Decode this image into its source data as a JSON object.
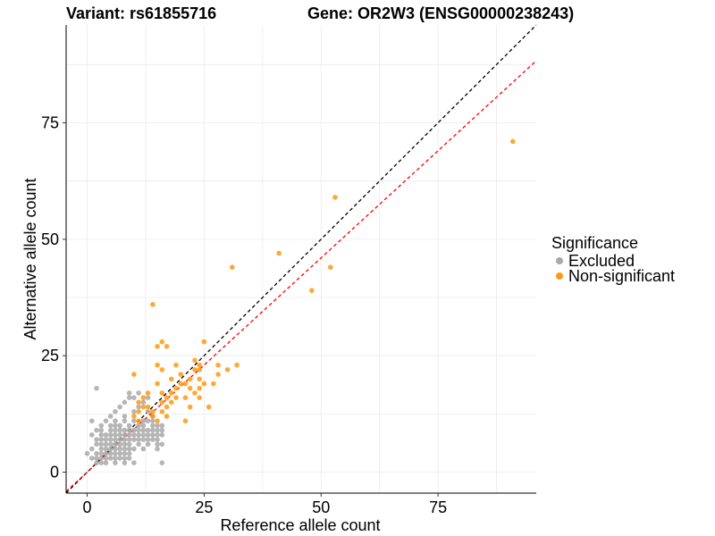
{
  "chart_data": {
    "type": "scatter",
    "title_left": "Variant: rs61855716",
    "title_right": "Gene: OR2W3 (ENSG00000238243)",
    "xlabel": "Reference allele count",
    "ylabel": "Alternative allele count",
    "xlim": [
      -4.5,
      96
    ],
    "ylim": [
      -4.5,
      96
    ],
    "xticks": [
      0,
      25,
      50,
      75
    ],
    "yticks": [
      0,
      25,
      50,
      75
    ],
    "grid": true,
    "reference_lines": [
      {
        "slope": 1.0,
        "intercept": 0,
        "color": "#000000",
        "style": "dashed"
      },
      {
        "slope": 0.92,
        "intercept": 0,
        "color": "#ff0000",
        "style": "dashed"
      }
    ],
    "legend": {
      "title": "Significance",
      "placement": "right",
      "entries": [
        {
          "label": "Excluded",
          "color": "#a9a9a9"
        },
        {
          "label": "Non-significant",
          "color": "#ff9a0f"
        }
      ]
    },
    "series": [
      {
        "name": "Excluded",
        "color": "#a9a9a9",
        "points": [
          [
            0,
            4
          ],
          [
            1,
            3
          ],
          [
            1,
            5
          ],
          [
            1,
            8
          ],
          [
            1,
            11
          ],
          [
            2,
            2
          ],
          [
            2,
            3
          ],
          [
            2,
            4
          ],
          [
            2,
            6
          ],
          [
            2,
            7
          ],
          [
            2,
            9
          ],
          [
            2,
            18
          ],
          [
            3,
            2
          ],
          [
            3,
            3
          ],
          [
            3,
            4
          ],
          [
            3,
            5
          ],
          [
            3,
            6
          ],
          [
            3,
            7
          ],
          [
            3,
            8
          ],
          [
            3,
            9
          ],
          [
            3,
            10
          ],
          [
            4,
            2
          ],
          [
            4,
            3
          ],
          [
            4,
            4
          ],
          [
            4,
            5
          ],
          [
            4,
            6
          ],
          [
            4,
            7
          ],
          [
            4,
            8
          ],
          [
            4,
            11
          ],
          [
            5,
            3
          ],
          [
            5,
            4
          ],
          [
            5,
            5
          ],
          [
            5,
            6
          ],
          [
            5,
            7
          ],
          [
            5,
            8
          ],
          [
            5,
            9
          ],
          [
            5,
            10
          ],
          [
            5,
            12
          ],
          [
            6,
            2
          ],
          [
            6,
            3
          ],
          [
            6,
            4
          ],
          [
            6,
            5
          ],
          [
            6,
            6
          ],
          [
            6,
            7
          ],
          [
            6,
            8
          ],
          [
            6,
            9
          ],
          [
            6,
            10
          ],
          [
            6,
            11
          ],
          [
            6,
            13
          ],
          [
            7,
            3
          ],
          [
            7,
            4
          ],
          [
            7,
            5
          ],
          [
            7,
            6
          ],
          [
            7,
            7
          ],
          [
            7,
            8
          ],
          [
            7,
            9
          ],
          [
            7,
            10
          ],
          [
            7,
            14
          ],
          [
            8,
            2
          ],
          [
            8,
            3
          ],
          [
            8,
            4
          ],
          [
            8,
            5
          ],
          [
            8,
            6
          ],
          [
            8,
            7
          ],
          [
            8,
            8
          ],
          [
            8,
            9
          ],
          [
            8,
            11
          ],
          [
            8,
            12
          ],
          [
            8,
            15
          ],
          [
            9,
            3
          ],
          [
            9,
            4
          ],
          [
            9,
            5
          ],
          [
            9,
            6
          ],
          [
            9,
            7
          ],
          [
            9,
            8
          ],
          [
            9,
            9
          ],
          [
            9,
            10
          ],
          [
            9,
            16
          ],
          [
            9,
            17
          ],
          [
            10,
            2
          ],
          [
            10,
            5
          ],
          [
            10,
            7
          ],
          [
            10,
            8
          ],
          [
            10,
            9
          ],
          [
            10,
            11
          ],
          [
            10,
            13
          ],
          [
            10,
            16
          ],
          [
            11,
            6
          ],
          [
            11,
            7
          ],
          [
            11,
            8
          ],
          [
            11,
            9
          ],
          [
            11,
            10
          ],
          [
            11,
            14
          ],
          [
            11,
            17
          ],
          [
            12,
            5
          ],
          [
            12,
            7
          ],
          [
            12,
            8
          ],
          [
            12,
            9
          ],
          [
            12,
            10
          ],
          [
            12,
            11
          ],
          [
            12,
            15
          ],
          [
            13,
            6
          ],
          [
            13,
            7
          ],
          [
            13,
            8
          ],
          [
            13,
            9
          ],
          [
            13,
            11
          ],
          [
            13,
            13
          ],
          [
            13,
            16
          ],
          [
            14,
            7
          ],
          [
            14,
            8
          ],
          [
            14,
            9
          ],
          [
            14,
            10
          ],
          [
            14,
            11
          ],
          [
            14,
            12
          ],
          [
            15,
            5
          ],
          [
            15,
            6
          ],
          [
            15,
            7
          ],
          [
            15,
            8
          ],
          [
            15,
            9
          ],
          [
            15,
            10
          ],
          [
            16,
            2
          ],
          [
            16,
            6
          ],
          [
            16,
            8
          ],
          [
            16,
            9
          ],
          [
            16,
            10
          ]
        ]
      },
      {
        "name": "Non-significant",
        "color": "#ff9a0f",
        "points": [
          [
            10,
            12
          ],
          [
            10,
            21
          ],
          [
            11,
            11
          ],
          [
            11,
            13
          ],
          [
            11,
            15
          ],
          [
            12,
            14
          ],
          [
            12,
            16
          ],
          [
            13,
            17
          ],
          [
            13,
            14
          ],
          [
            14,
            12
          ],
          [
            14,
            36
          ],
          [
            14,
            13
          ],
          [
            15,
            11
          ],
          [
            15,
            19
          ],
          [
            15,
            23
          ],
          [
            15,
            27
          ],
          [
            16,
            22
          ],
          [
            16,
            17
          ],
          [
            16,
            28
          ],
          [
            16,
            13
          ],
          [
            16,
            15
          ],
          [
            17,
            14
          ],
          [
            17,
            16
          ],
          [
            17,
            12
          ],
          [
            17,
            27
          ],
          [
            18,
            15
          ],
          [
            18,
            17
          ],
          [
            18,
            20
          ],
          [
            19,
            16
          ],
          [
            19,
            18
          ],
          [
            19,
            23
          ],
          [
            20,
            19
          ],
          [
            20,
            21
          ],
          [
            21,
            11
          ],
          [
            21,
            16
          ],
          [
            21,
            19
          ],
          [
            22,
            14
          ],
          [
            22,
            18
          ],
          [
            22,
            20
          ],
          [
            23,
            17
          ],
          [
            23,
            22
          ],
          [
            23,
            24
          ],
          [
            24,
            16
          ],
          [
            24,
            18
          ],
          [
            24,
            20
          ],
          [
            24,
            22
          ],
          [
            24,
            23
          ],
          [
            25,
            19
          ],
          [
            25,
            28
          ],
          [
            26,
            14
          ],
          [
            27,
            19
          ],
          [
            28,
            21
          ],
          [
            28,
            23
          ],
          [
            30,
            22
          ],
          [
            31,
            44
          ],
          [
            32,
            23
          ],
          [
            41,
            47
          ],
          [
            48,
            39
          ],
          [
            52,
            44
          ],
          [
            53,
            59
          ],
          [
            91,
            71
          ]
        ]
      }
    ]
  }
}
